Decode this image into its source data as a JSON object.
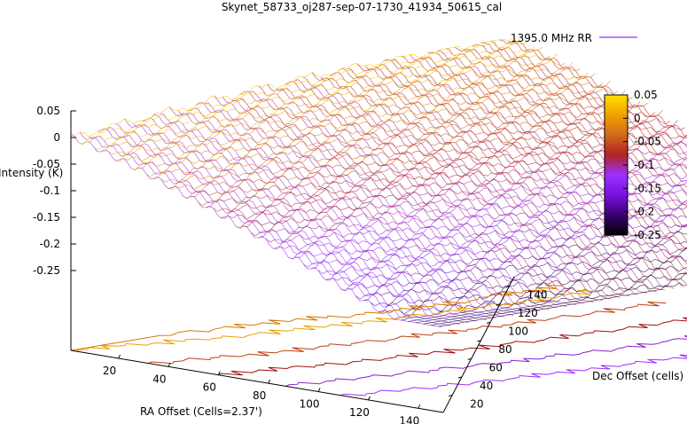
{
  "chart_data": {
    "type": "surface",
    "title": "Skynet_58733_oj287-sep-07-1730_41934_50615_cal",
    "legend": {
      "label": "1395.0 MHz RR",
      "color": "#9b30ff",
      "placement": "top-right"
    },
    "xlabel": "RA Offset (Cells=2.37')",
    "ylabel": "Dec Offset (cells)",
    "zlabel": "Intensity (K)",
    "x_ticks": [
      "20",
      "40",
      "60",
      "80",
      "100",
      "120",
      "140"
    ],
    "y_ticks": [
      "20",
      "40",
      "60",
      "80",
      "100",
      "120",
      "140"
    ],
    "z_ticks": [
      "0.05",
      "0",
      "-0.05",
      "-0.1",
      "-0.15",
      "-0.2",
      "-0.25"
    ],
    "xlim": [
      1,
      150
    ],
    "ylim": [
      1,
      150
    ],
    "zlim": [
      -0.25,
      0.05
    ],
    "colorbar": {
      "range": [
        -0.25,
        0.05
      ],
      "ticks": [
        "0.05",
        "0",
        "-0.05",
        "-0.1",
        "-0.15",
        "-0.2",
        "-0.25"
      ],
      "colors": [
        "#000000",
        "#3a0070",
        "#7a10e0",
        "#9b30ff",
        "#b22222",
        "#d2691e",
        "#f0a000",
        "#ffe000"
      ]
    },
    "surface_model": {
      "z_at_origin": 0.0,
      "z_peak": 0.05,
      "z_min": -0.22,
      "peak_dec": 120
    },
    "contours": [
      {
        "level": 0,
        "color": "#e8a000"
      },
      {
        "level": 0.02,
        "color": "#d87a00"
      },
      {
        "level": -0.05,
        "color": "#c04010"
      },
      {
        "level": -0.1,
        "color": "#a01010"
      },
      {
        "level": -0.15,
        "color": "#8a20d0"
      },
      {
        "level": -0.2,
        "color": "#9b30ff"
      }
    ]
  }
}
